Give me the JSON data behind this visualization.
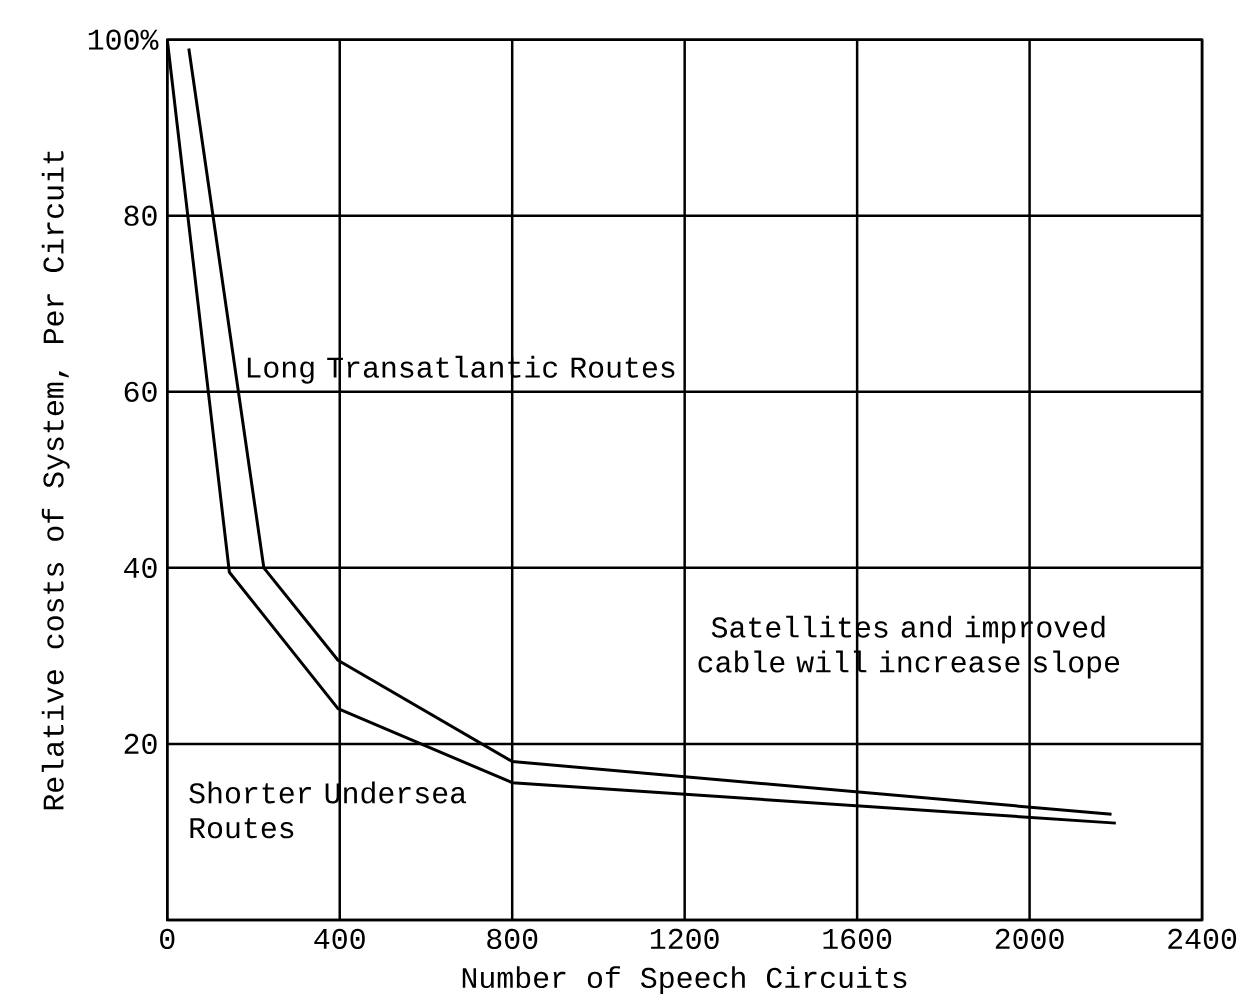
{
  "chart_data": {
    "type": "line",
    "xlabel": "Number of Speech Circuits",
    "ylabel": "Relative costs of System, Per Circuit",
    "series": [
      {
        "name": "Long Transatlantic Routes",
        "color": "#000000",
        "x": [
          50,
          224,
          396,
          800,
          2190
        ],
        "values": [
          99,
          40,
          29.5,
          18,
          12
        ]
      },
      {
        "name": "Shorter Undersea Routes",
        "color": "#000000",
        "x": [
          0,
          144,
          396,
          800,
          2200
        ],
        "values": [
          100,
          39.5,
          24,
          15.6,
          11
        ]
      }
    ],
    "xlim": [
      0,
      2400
    ],
    "xticks": [
      0,
      400,
      800,
      1200,
      1600,
      2000,
      2400
    ],
    "ylim": [
      0,
      100
    ],
    "yticks": [
      {
        "value": 0,
        "label": null
      },
      20,
      40,
      60,
      80,
      {
        "value": 100,
        "label": "100%"
      }
    ],
    "grid": true,
    "legend": false,
    "marker": "none",
    "line_style": "solid",
    "annotations": [
      "Satellites and improved cable will increase slope"
    ]
  }
}
